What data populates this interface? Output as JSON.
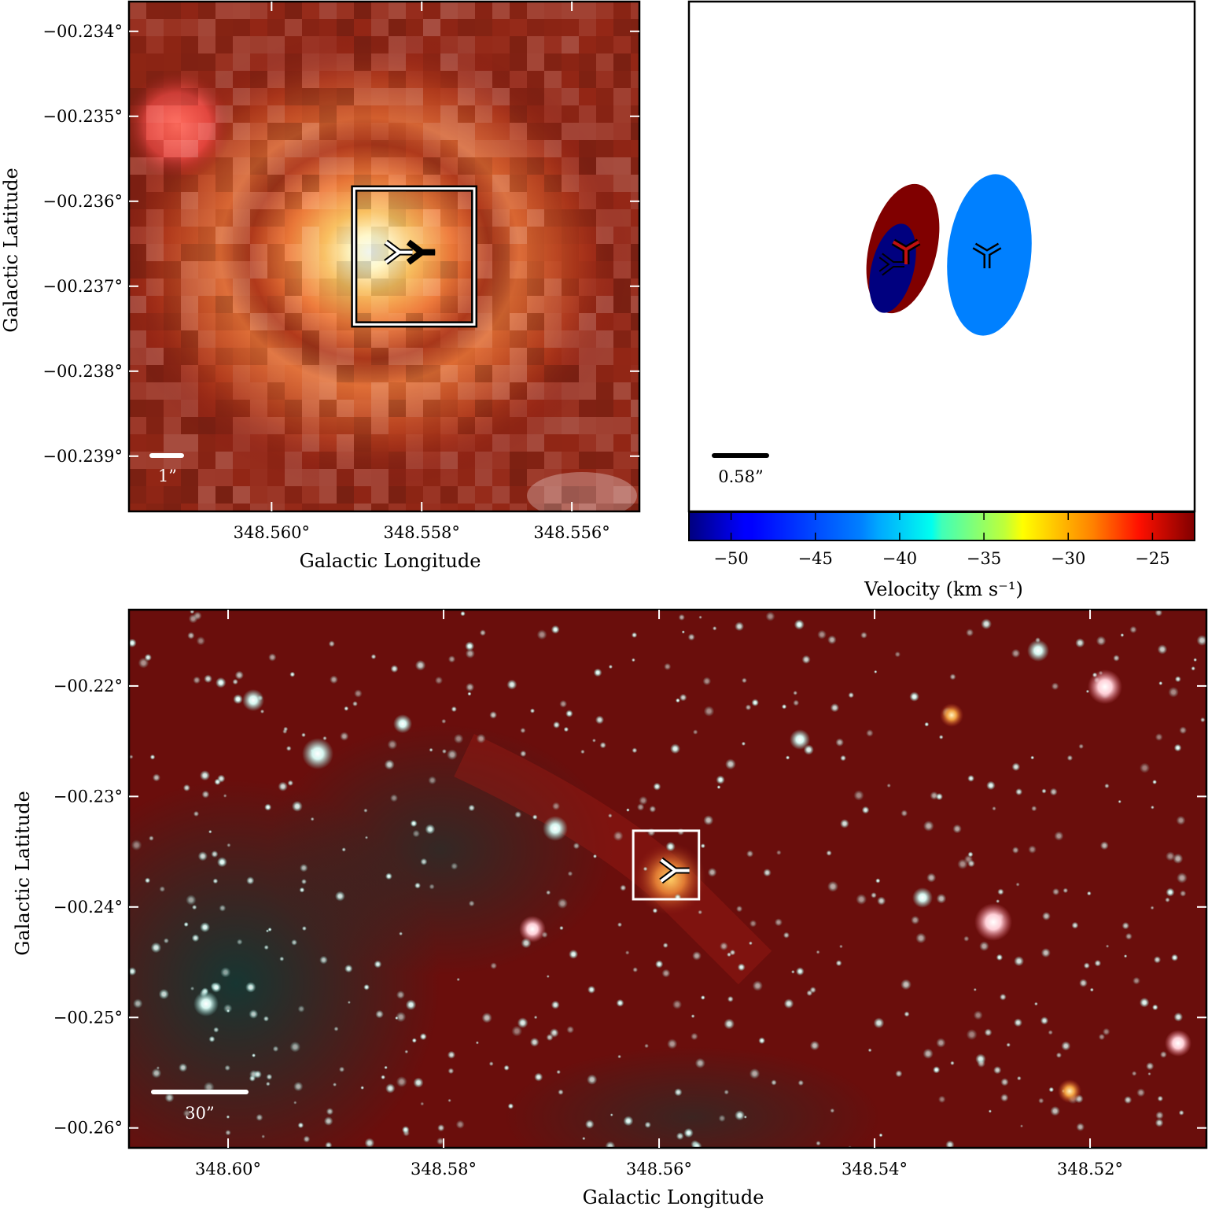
{
  "panels": {
    "zoom": {
      "xlabel": "Galactic Longitude",
      "ylabel": "Galactic Latitude",
      "x_ticks": [
        "348.560°",
        "348.558°",
        "348.556°"
      ],
      "y_ticks": [
        "−00.234°",
        "−00.235°",
        "−00.236°",
        "−00.237°",
        "−00.238°",
        "−00.239°"
      ],
      "scalebar_label": "1”",
      "x_range": [
        348.5619,
        348.5551
      ],
      "y_range": [
        -0.23965,
        -0.23365
      ]
    },
    "velocity": {
      "scalebar_label": "0.58”",
      "colorbar_ticks": [
        "−50",
        "−45",
        "−40",
        "−35",
        "−30",
        "−25"
      ],
      "colorbar_label": "Velocity (km s⁻¹)",
      "colorbar_range": [
        -52.5,
        -22.5
      ]
    },
    "wide": {
      "xlabel": "Galactic Longitude",
      "ylabel": "Galactic Latitude",
      "x_ticks": [
        "348.60°",
        "348.58°",
        "348.56°",
        "348.54°",
        "348.52°"
      ],
      "y_ticks": [
        "−00.22°",
        "−00.23°",
        "−00.24°",
        "−00.25°",
        "−00.26°"
      ],
      "scalebar_label": "30”",
      "x_range": [
        348.6092,
        348.5092
      ],
      "y_range": [
        -0.2618,
        -0.2131
      ]
    }
  },
  "chart_data": [
    {
      "type": "heatmap",
      "title": "",
      "xlabel": "Galactic Longitude",
      "ylabel": "Galactic Latitude",
      "xlim": [
        348.5619,
        348.5551
      ],
      "ylim": [
        -0.23965,
        -0.23365
      ],
      "x_ticks": [
        348.56,
        348.558,
        348.556
      ],
      "y_ticks": [
        -0.234,
        -0.235,
        -0.236,
        -0.237,
        -0.238,
        -0.239
      ],
      "peak": {
        "l": 348.5583,
        "b": -0.2366
      },
      "markers": [
        {
          "l": 348.5583,
          "b": -0.2366
        },
        {
          "l": 348.558,
          "b": -0.2366
        }
      ],
      "box": {
        "l": [
          348.5589,
          348.5573
        ],
        "b": [
          -0.23745,
          -0.23585
        ]
      },
      "scale_bar": "1”"
    },
    {
      "type": "scatter",
      "title": "",
      "colorbar_label": "Velocity (km s⁻¹)",
      "colorbar_range": [
        -52.5,
        -22.5
      ],
      "colorbar_ticks": [
        -50,
        -45,
        -40,
        -35,
        -30,
        -25
      ],
      "components": [
        {
          "velocity": -24,
          "color": "#800000"
        },
        {
          "velocity": -51,
          "color": "#00007f"
        },
        {
          "velocity": -37,
          "color": "#0080ff"
        }
      ],
      "scale_bar": "0.58”"
    },
    {
      "type": "heatmap",
      "title": "",
      "xlabel": "Galactic Longitude",
      "ylabel": "Galactic Latitude",
      "xlim": [
        348.6092,
        348.5092
      ],
      "ylim": [
        -0.2618,
        -0.2131
      ],
      "x_ticks": [
        348.6,
        348.58,
        348.56,
        348.54,
        348.52
      ],
      "y_ticks": [
        -0.22,
        -0.23,
        -0.24,
        -0.25,
        -0.26
      ],
      "marker": {
        "l": 348.5585,
        "b": -0.2367
      },
      "box": {
        "l": [
          348.5624,
          348.5563
        ],
        "b": [
          -0.2393,
          -0.2331
        ]
      },
      "scale_bar": "30”"
    }
  ],
  "colors": {
    "frame": "#000000",
    "box": "#ffffff",
    "background_red": "#6a0e0c",
    "star": "#d8f4f0"
  }
}
